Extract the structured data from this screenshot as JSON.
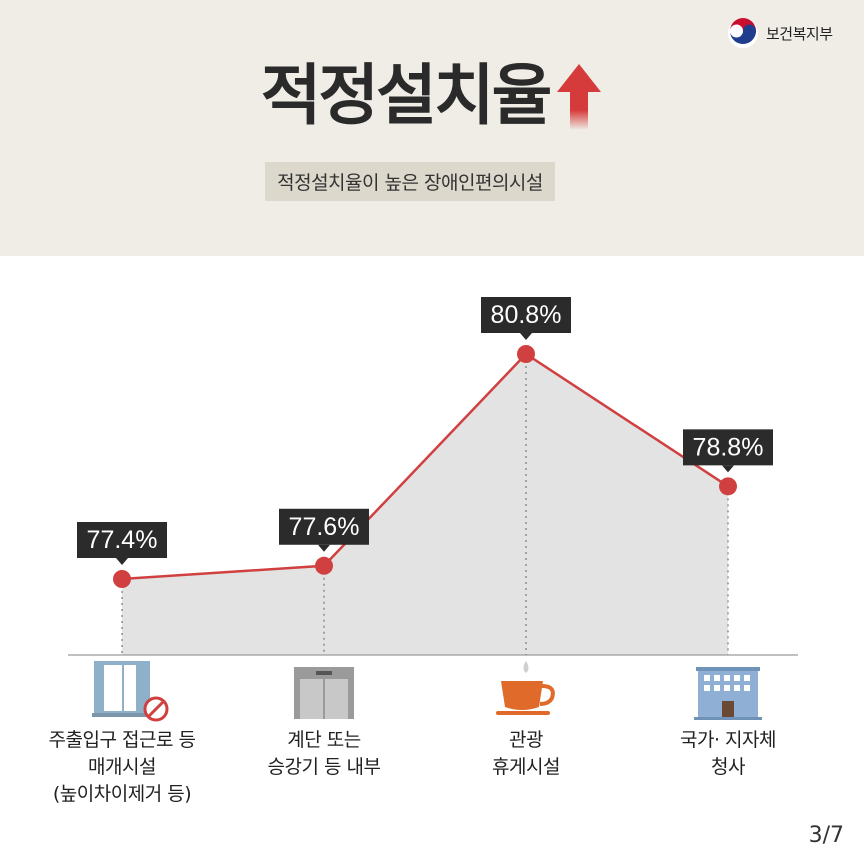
{
  "header": {
    "logo_text": "보건복지부",
    "title": "적정설치율",
    "subtitle": "적정설치율이 높은 장애인편의시설",
    "page": "3/7"
  },
  "colors": {
    "accent": "#d14040",
    "area_fill": "#e3e3e3",
    "label_bg": "#2b2b2b",
    "header_bg": "#efede6"
  },
  "chart_data": {
    "type": "area",
    "categories": [
      "주출입구 접근로 등 매개시설 (높이차이제거 등)",
      "계단 또는 승강기 등 내부",
      "관광 휴게시설",
      "국가·지자체 청사"
    ],
    "category_lines": [
      [
        "주출입구 접근로 등",
        "매개시설",
        "(높이차이제거 등)"
      ],
      [
        "계단 또는",
        "승강기 등 내부"
      ],
      [
        "관광",
        "휴게시설"
      ],
      [
        "국가· 지자체",
        "청사"
      ]
    ],
    "category_icons": [
      "door-icon",
      "elevator-icon",
      "coffee-cup-icon",
      "building-icon"
    ],
    "values": [
      77.4,
      77.6,
      80.8,
      78.8
    ],
    "value_labels": [
      "77.4%",
      "77.6%",
      "80.8%",
      "78.8%"
    ],
    "unit": "%"
  }
}
